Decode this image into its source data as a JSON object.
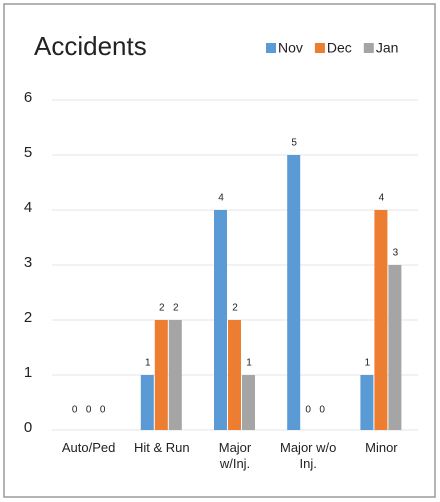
{
  "chart_data": {
    "type": "bar",
    "title": "Accidents",
    "categories": [
      "Auto/Ped",
      "Hit & Run",
      "Major w/Inj.",
      "Major w/o Inj.",
      "Minor"
    ],
    "series": [
      {
        "name": "Nov",
        "color": "#5b9bd5",
        "values": [
          0,
          1,
          4,
          5,
          1
        ]
      },
      {
        "name": "Dec",
        "color": "#ed7d31",
        "values": [
          0,
          2,
          2,
          0,
          4
        ]
      },
      {
        "name": "Jan",
        "color": "#a5a5a5",
        "values": [
          0,
          2,
          1,
          0,
          3
        ]
      }
    ],
    "ylim": [
      0,
      6
    ],
    "yticks": [
      0,
      1,
      2,
      3,
      4,
      5,
      6
    ],
    "grid": true
  }
}
